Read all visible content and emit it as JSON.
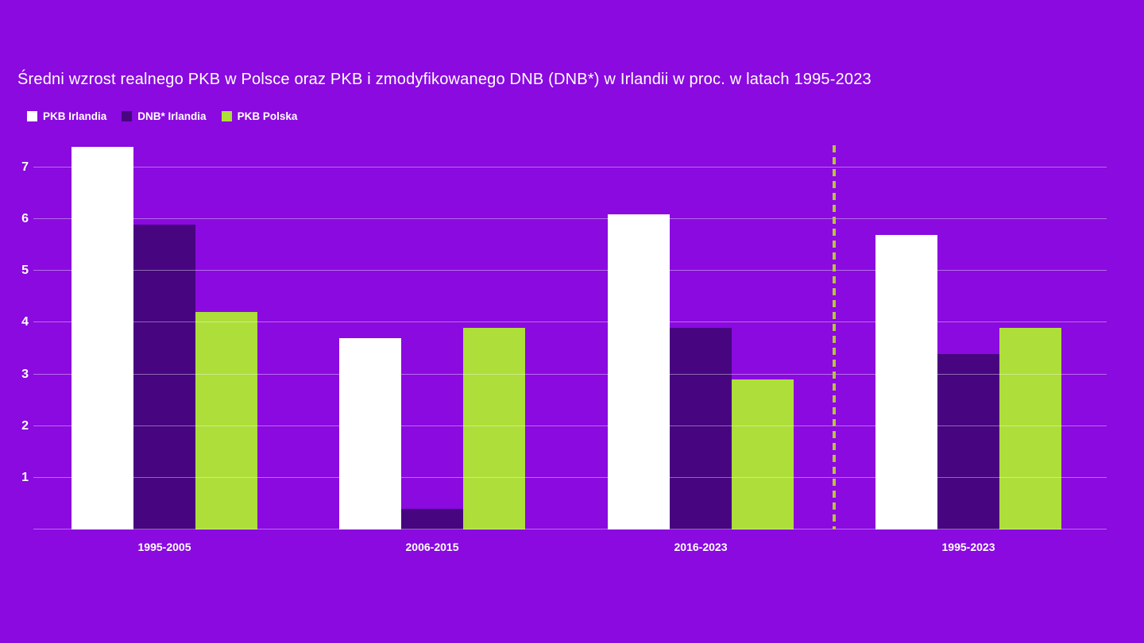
{
  "title": "Średni wzrost realnego PKB w Polsce oraz PKB i zmodyfikowanego DNB (DNB*) w Irlandii w proc. w latach 1995-2023",
  "colors": {
    "background": "#8A0ADF",
    "gridline": "rgba(255,255,255,0.4)",
    "separator": "#B6C637",
    "text": "#FFFFFF"
  },
  "legend": {
    "items": [
      "PKB Irlandia",
      "DNB* Irlandia",
      "PKB Polska"
    ]
  },
  "chart_data": {
    "type": "bar",
    "categories": [
      "1995-2005",
      "2006-2015",
      "2016-2023",
      "1995-2023"
    ],
    "series": [
      {
        "name": "PKB Irlandia",
        "color": "#FFFFFF",
        "values": [
          7.4,
          3.7,
          6.1,
          5.7
        ]
      },
      {
        "name": "DNB* Irlandia",
        "color": "#470580",
        "values": [
          5.9,
          0.4,
          3.9,
          3.4
        ]
      },
      {
        "name": "PKB Polska",
        "color": "#AEDE3A",
        "values": [
          4.2,
          3.9,
          2.9,
          3.9
        ]
      }
    ],
    "title": "Średni wzrost realnego PKB w Polsce oraz PKB i zmodyfikowanego DNB (DNB*) w Irlandii w proc. w latach 1995-2023",
    "xlabel": "",
    "ylabel": "",
    "yticks": [
      1,
      2,
      3,
      4,
      5,
      6,
      7
    ],
    "ylim": [
      0,
      7.43
    ],
    "grid": true,
    "gridlines_on_top_of_bars": true,
    "legend_position": "top-left",
    "separator_dashed_vertical_between": [
      "2016-2023",
      "1995-2023"
    ]
  }
}
